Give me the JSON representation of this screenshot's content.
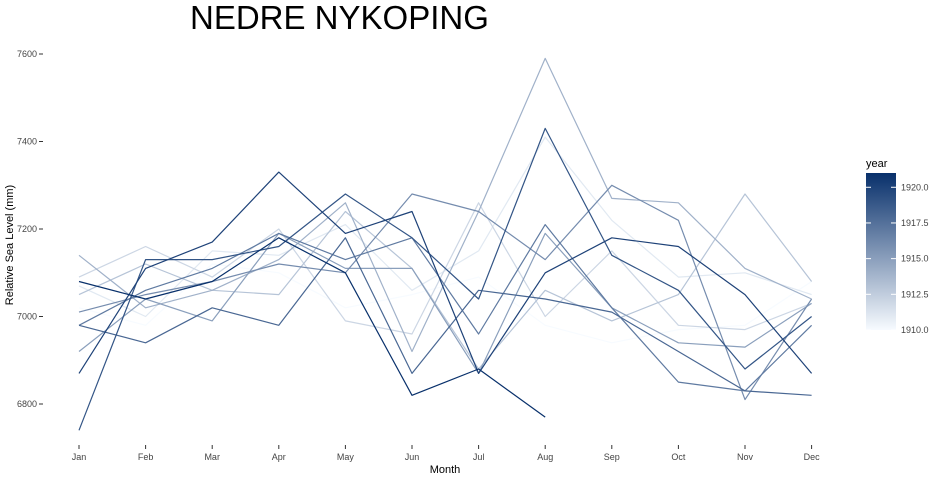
{
  "chart_data": {
    "type": "line",
    "title": "NEDRE NYKOPING",
    "xlabel": "Month",
    "ylabel": "Relative Sea Level (mm)",
    "categories": [
      "Jan",
      "Feb",
      "Mar",
      "Apr",
      "May",
      "Jun",
      "Jul",
      "Aug",
      "Sep",
      "Oct",
      "Nov",
      "Dec"
    ],
    "yticks": [
      6800,
      7000,
      7200,
      7400,
      7600
    ],
    "ylim": [
      6745,
      7620
    ],
    "grid": false,
    "legend": {
      "title": "year",
      "position": "right",
      "ticks": [
        1910.0,
        1912.5,
        1915.0,
        1917.5,
        1920.0
      ],
      "tick_labels": [
        "1910.0",
        "1912.5",
        "1915.0",
        "1917.5",
        "1920.0"
      ],
      "range": [
        1910,
        1921
      ],
      "color_low": "#f7fbff",
      "color_high": "#08306b"
    },
    "series": [
      {
        "year": 1910,
        "values": [
          7020,
          6980,
          7120,
          7100,
          7020,
          7050,
          7090,
          6980,
          6940,
          6970,
          6980,
          7080
        ]
      },
      {
        "year": 1911,
        "values": [
          7070,
          7000,
          7150,
          7140,
          7210,
          7060,
          7150,
          7410,
          7220,
          7090,
          7100,
          7050
        ]
      },
      {
        "year": 1912,
        "values": [
          7090,
          7160,
          7090,
          7200,
          6990,
          6960,
          7260,
          7000,
          7150,
          6980,
          6970,
          7030
        ]
      },
      {
        "year": 1913,
        "values": [
          7050,
          7120,
          7060,
          7050,
          7240,
          7110,
          6880,
          7060,
          6990,
          7050,
          7280,
          7080
        ]
      },
      {
        "year": 1914,
        "values": [
          7140,
          7020,
          7060,
          7130,
          7260,
          6920,
          7240,
          7590,
          7270,
          7260,
          7110,
          7040
        ]
      },
      {
        "year": 1915,
        "values": [
          6920,
          7040,
          6990,
          7190,
          7110,
          7110,
          6870,
          7190,
          7020,
          6940,
          6930,
          7030
        ]
      },
      {
        "year": 1916,
        "values": [
          7010,
          7050,
          7080,
          7120,
          7100,
          7280,
          7240,
          7130,
          7300,
          7220,
          6810,
          7040
        ]
      },
      {
        "year": 1917,
        "values": [
          6980,
          7060,
          7110,
          7190,
          7130,
          7180,
          6960,
          7210,
          7020,
          6850,
          6830,
          6980
        ]
      },
      {
        "year": 1918,
        "values": [
          6980,
          6940,
          7020,
          6980,
          7180,
          6870,
          7060,
          7040,
          7010,
          6920,
          6830,
          6820
        ]
      },
      {
        "year": 1919,
        "values": [
          6740,
          7130,
          7130,
          7160,
          7280,
          7180,
          7040,
          7430,
          7140,
          7060,
          6880,
          7000
        ]
      },
      {
        "year": 1920,
        "values": [
          6870,
          7110,
          7170,
          7330,
          7190,
          7240,
          6870,
          7100,
          7180,
          7160,
          7050,
          6870
        ]
      },
      {
        "year": 1921,
        "values": [
          7080,
          7040,
          7080,
          7180,
          7100,
          6820,
          6880,
          6770,
          null,
          null,
          null,
          null
        ]
      }
    ]
  }
}
